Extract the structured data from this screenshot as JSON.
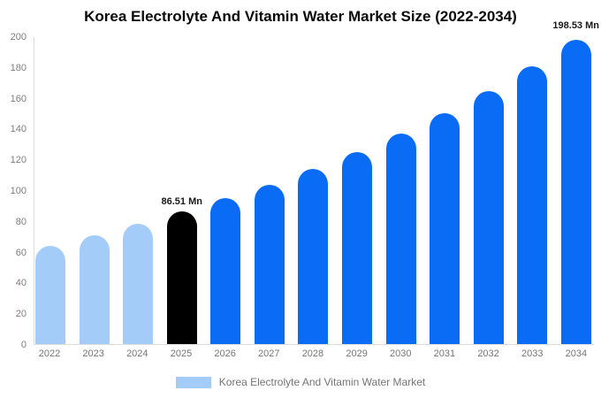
{
  "title": "Korea Electrolyte And Vitamin Water Market Size (2022-2034)",
  "colors": {
    "historical": "#A3CDF8",
    "base_year": "#000000",
    "forecast": "#0A6CF5",
    "axis_line": "#dddddd",
    "tick_label": "#7d7d7d",
    "legend_label": "#757575",
    "annotation_text": "#1a1a1a",
    "title_text": "#0a0a0a",
    "background": "#ffffff"
  },
  "legend": {
    "swatch_color": "#A3CDF8",
    "label": "Korea Electrolyte And Vitamin Water Market"
  },
  "chart_data": {
    "type": "bar",
    "title": "Korea Electrolyte And Vitamin Water Market Size (2022-2034)",
    "unit": "Mn",
    "categories": [
      "2022",
      "2023",
      "2024",
      "2025",
      "2026",
      "2027",
      "2028",
      "2029",
      "2030",
      "2031",
      "2032",
      "2033",
      "2034"
    ],
    "values": [
      64.2,
      71.1,
      78.3,
      86.51,
      94.87,
      104.04,
      114.1,
      125.13,
      137.22,
      150.48,
      165.03,
      180.98,
      198.53
    ],
    "bar_roles": [
      "historical",
      "historical",
      "historical",
      "base_year",
      "forecast",
      "forecast",
      "forecast",
      "forecast",
      "forecast",
      "forecast",
      "forecast",
      "forecast",
      "forecast"
    ],
    "xlabel": "",
    "ylabel": "",
    "ylim": [
      0,
      200
    ],
    "yticks": [
      0,
      20,
      40,
      60,
      80,
      100,
      120,
      140,
      160,
      180,
      200
    ],
    "grid": false,
    "legend_position": "bottom",
    "legend_entries": [
      "Korea Electrolyte And Vitamin Water Market"
    ],
    "annotations": [
      {
        "index": 3,
        "category": "2025",
        "text": "86.51 Mn",
        "placement": "above-bar"
      },
      {
        "index": 12,
        "category": "2034",
        "text": "198.53 Mn",
        "placement": "top-right"
      }
    ]
  }
}
